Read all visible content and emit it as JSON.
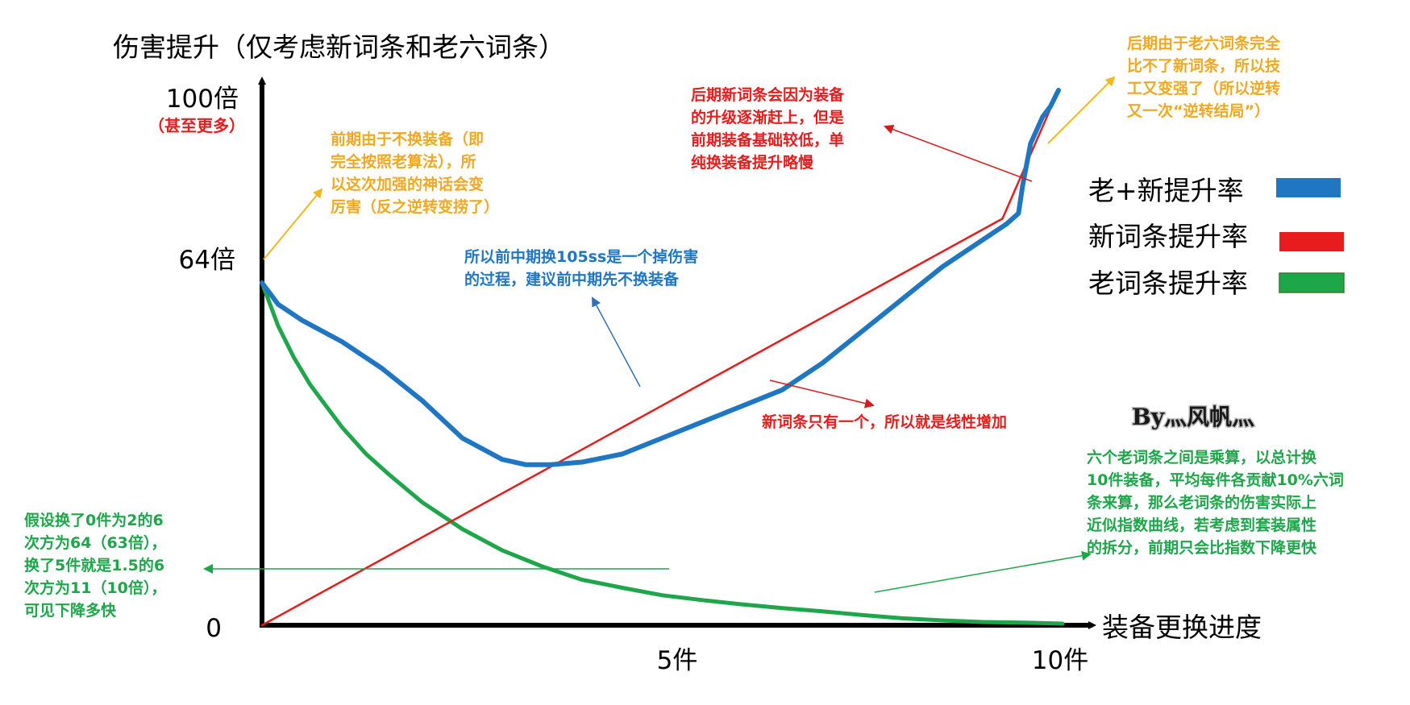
{
  "chart_data": {
    "type": "line",
    "title": "伤害提升（仅考虑新词条和老六词条）",
    "xlabel": "装备更换进度",
    "ylabel": "",
    "x_ticks": [
      "5件",
      "10件"
    ],
    "y_ticks": [
      "0",
      "64倍",
      "100倍"
    ],
    "y_note": "（甚至更多）",
    "xlim": [
      0,
      10
    ],
    "ylim": [
      0,
      100
    ],
    "legend_position": "right",
    "series": [
      {
        "name": "老+新提升率",
        "color": "#1f77c4",
        "x": [
          0,
          0.2,
          0.5,
          1.0,
          1.5,
          2.0,
          2.5,
          3.0,
          3.3,
          3.6,
          4.0,
          4.5,
          5.0,
          5.5,
          6.0,
          6.5,
          7.0,
          7.5,
          8.0,
          8.5,
          9.0,
          9.3,
          9.45,
          9.5,
          9.6,
          9.75,
          9.85,
          9.95
        ],
        "y": [
          64,
          60,
          57,
          53,
          48,
          42,
          35,
          31,
          30,
          30,
          30.5,
          32,
          35,
          38,
          41,
          44,
          49,
          55,
          61,
          67,
          72,
          75,
          77,
          82,
          90,
          95,
          97,
          100
        ]
      },
      {
        "name": "新词条提升率",
        "color": "#e81c1c",
        "x": [
          0,
          9.25,
          9.95
        ],
        "y": [
          0,
          76,
          100
        ]
      },
      {
        "name": "老词条提升率",
        "color": "#1ea64a",
        "x": [
          0,
          0.2,
          0.4,
          0.6,
          0.8,
          1.0,
          1.3,
          1.6,
          2.0,
          2.5,
          3.0,
          3.5,
          4.0,
          4.5,
          5.0,
          5.5,
          6.0,
          6.5,
          7.0,
          7.5,
          8.0,
          8.5,
          9.0,
          9.5,
          10.0
        ],
        "y": [
          64,
          56,
          50,
          45,
          41,
          37,
          32,
          28,
          23,
          18,
          14,
          11,
          8.5,
          7,
          5.6,
          4.7,
          3.9,
          3.2,
          2.6,
          1.9,
          1.3,
          0.9,
          0.6,
          0.5,
          0.3
        ]
      }
    ],
    "annotations": [
      {
        "lines": [
          "前期由于不换装备（即",
          "完全按照老算法），所",
          "以这次加强的神话会变",
          "厉害（反之逆转变捞了）"
        ],
        "color": "#f0a820"
      },
      {
        "lines": [
          "所以前中期换105ss是一个掉伤害",
          "的过程，建议前中期先不换装备"
        ],
        "color": "#1f77c4"
      },
      {
        "lines": [
          "后期新词条会因为装备",
          "的升级逐渐赶上，但是",
          "前期装备基础较低，单",
          "纯换装备提升略慢"
        ],
        "color": "#e81c1c"
      },
      {
        "lines": [
          "后期由于老六词条完全",
          "比不了新词条，所以技",
          "工又变强了（所以逆转",
          "又一次“逆转结局”）"
        ],
        "color": "#f0a820"
      },
      {
        "lines": [
          "新词条只有一个，所以就是线性增加"
        ],
        "color": "#e81c1c"
      },
      {
        "lines": [
          "六个老词条之间是乘算，以总计换",
          "10件装备，平均每件各贡献10%六词",
          "条来算，那么老词条的伤害实际上",
          "近似指数曲线，若考虑到套装属性",
          "的拆分，前期只会比指数下降更快"
        ],
        "color": "#1ea64a"
      },
      {
        "lines": [
          "假设换了0件为2的6",
          "次方为64（63倍），",
          "换了5件就是1.5的6",
          "次方为11（10倍），",
          "可见下降多快"
        ],
        "color": "#1ea64a"
      }
    ],
    "signature": "By灬风帆灬"
  }
}
